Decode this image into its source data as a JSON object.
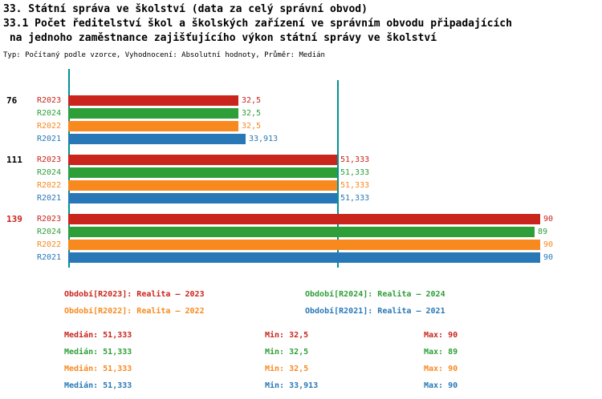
{
  "title": {
    "line1": "33. Státní správa ve školství (data za celý správní obvod)",
    "line2": "33.1 Počet ředitelství škol a školských zařízení ve správním obvodu připadajících",
    "line3": " na jednoho zaměstnance zajišťujícího výkon státní správy ve školství",
    "meta": "Typ: Počítaný podle vzorce, Vyhodnocení: Absolutní hodnoty, Průměr: Medián"
  },
  "chart_data": {
    "type": "bar",
    "orientation": "horizontal",
    "axis_color": "#009295",
    "median_line_value": 51.333,
    "value_axis_min": 0,
    "value_axis_max": 100,
    "series_order": [
      "R2023",
      "R2024",
      "R2022",
      "R2021"
    ],
    "series_colors": {
      "R2023": "#c9251c",
      "R2024": "#2e9e38",
      "R2022": "#f8891f",
      "R2021": "#2878b8"
    },
    "groups": [
      {
        "label": "76",
        "label_color": "#000000",
        "bars": [
          {
            "series": "R2023",
            "value": 32.5,
            "display": "32,5"
          },
          {
            "series": "R2024",
            "value": 32.5,
            "display": "32,5"
          },
          {
            "series": "R2022",
            "value": 32.5,
            "display": "32,5"
          },
          {
            "series": "R2021",
            "value": 33.913,
            "display": "33,913"
          }
        ]
      },
      {
        "label": "111",
        "label_color": "#000000",
        "bars": [
          {
            "series": "R2023",
            "value": 51.333,
            "display": "51,333"
          },
          {
            "series": "R2024",
            "value": 51.333,
            "display": "51,333"
          },
          {
            "series": "R2022",
            "value": 51.333,
            "display": "51,333"
          },
          {
            "series": "R2021",
            "value": 51.333,
            "display": "51,333"
          }
        ]
      },
      {
        "label": "139",
        "label_color": "#c9251c",
        "bars": [
          {
            "series": "R2023",
            "value": 90,
            "display": "90"
          },
          {
            "series": "R2024",
            "value": 89,
            "display": "89"
          },
          {
            "series": "R2022",
            "value": 90,
            "display": "90"
          },
          {
            "series": "R2021",
            "value": 90,
            "display": "90"
          }
        ]
      }
    ]
  },
  "legend": {
    "items": [
      {
        "series": "R2023",
        "text": "Období[R2023]: Realita – 2023"
      },
      {
        "series": "R2024",
        "text": "Období[R2024]: Realita – 2024"
      },
      {
        "series": "R2022",
        "text": "Období[R2022]: Realita – 2022"
      },
      {
        "series": "R2021",
        "text": "Období[R2021]: Realita – 2021"
      }
    ]
  },
  "stats": {
    "rows": [
      {
        "series": "R2023",
        "median": "Medián: 51,333",
        "min": "Min: 32,5",
        "max": "Max: 90"
      },
      {
        "series": "R2024",
        "median": "Medián: 51,333",
        "min": "Min: 32,5",
        "max": "Max: 89"
      },
      {
        "series": "R2022",
        "median": "Medián: 51,333",
        "min": "Min: 32,5",
        "max": "Max: 90"
      },
      {
        "series": "R2021",
        "median": "Medián: 51,333",
        "min": "Min: 33,913",
        "max": "Max: 90"
      }
    ]
  }
}
